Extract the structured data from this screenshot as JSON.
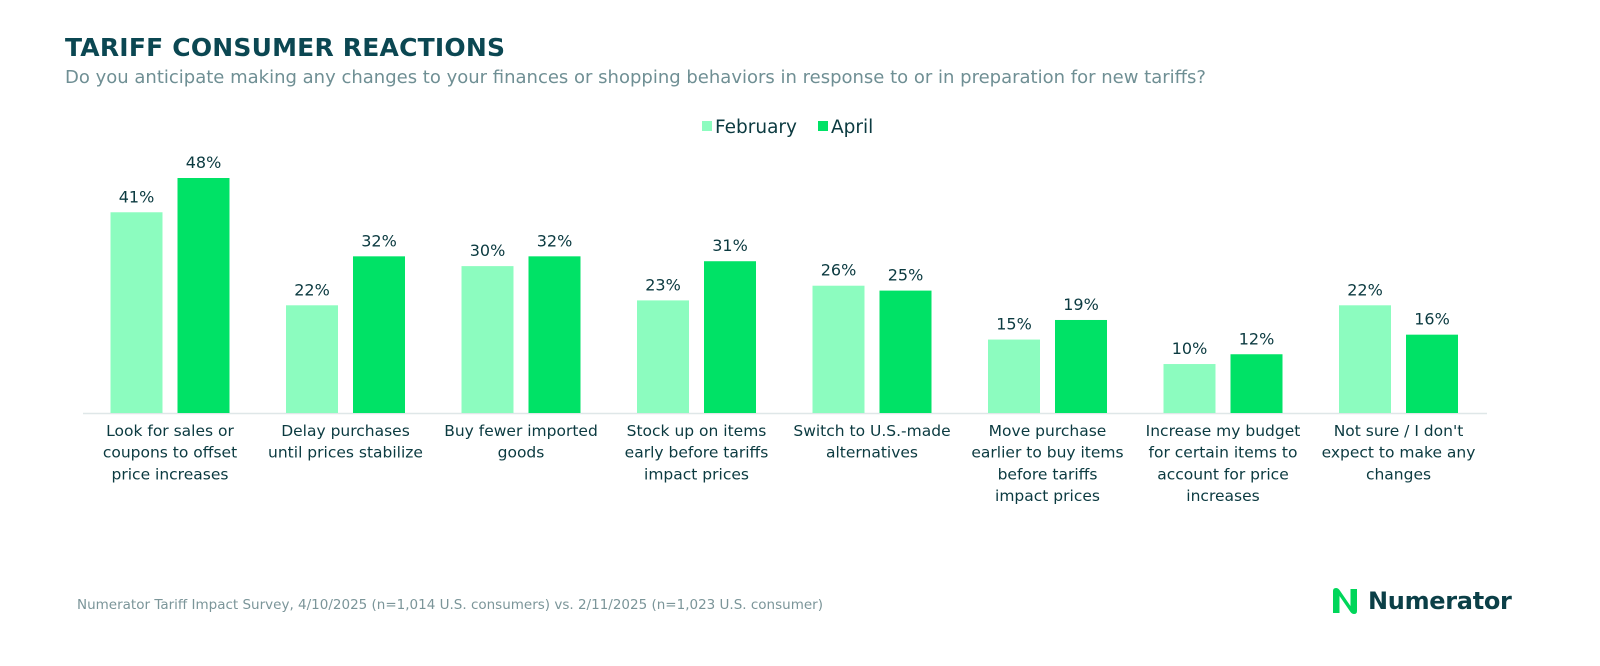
{
  "header": {
    "title": "TARIFF CONSUMER REACTIONS",
    "subtitle": "Do you anticipate making any changes to your finances or shopping behaviors in response to or in preparation for new tariffs?"
  },
  "footer": {
    "source": "Numerator Tariff Impact Survey, 4/10/2025 (n=1,014 U.S. consumers) vs. 2/11/2025 (n=1,023 U.S. consumer)",
    "logo_text": "Numerator"
  },
  "colors": {
    "february": "#8cfcbf",
    "april": "#00e266",
    "label": "#0b3a40",
    "axis": "#dfe7e8",
    "logo": "#00d65a"
  },
  "chart_data": {
    "type": "bar",
    "title": "TARIFF CONSUMER REACTIONS",
    "legend_position": "top-center",
    "grid": false,
    "ylim": [
      0,
      50
    ],
    "value_suffix": "%",
    "categories": [
      [
        "Look for sales or",
        "coupons to offset",
        "price increases"
      ],
      [
        "Delay purchases",
        "until prices stabilize"
      ],
      [
        "Buy fewer imported",
        "goods"
      ],
      [
        "Stock up on items",
        "early before tariffs",
        "impact prices"
      ],
      [
        "Switch to U.S.-made",
        "alternatives"
      ],
      [
        "Move purchase",
        "earlier to buy items",
        "before tariffs",
        "impact prices"
      ],
      [
        "Increase my budget",
        "for certain items to",
        "account for price",
        "increases"
      ],
      [
        "Not sure / I don't",
        "expect to make any",
        "changes"
      ]
    ],
    "series": [
      {
        "name": "February",
        "values": [
          41,
          22,
          30,
          23,
          26,
          15,
          10,
          22
        ]
      },
      {
        "name": "April",
        "values": [
          48,
          32,
          32,
          31,
          25,
          19,
          12,
          16
        ]
      }
    ]
  }
}
